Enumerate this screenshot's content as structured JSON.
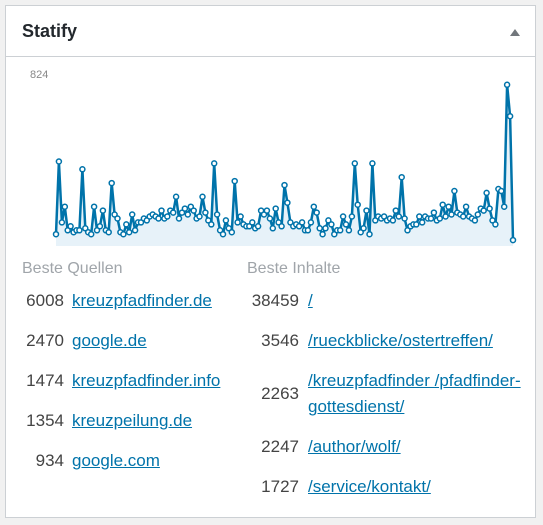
{
  "widget": {
    "title": "Statify",
    "toggle_icon": "triangle-up-icon"
  },
  "colors": {
    "line": "#0073aa",
    "area": "#e7f2f9",
    "link": "#0073aa",
    "muted": "#a0a5aa"
  },
  "chart_data": {
    "type": "area",
    "ymax_label": "824",
    "ylim": [
      0,
      824
    ],
    "values": [
      60,
      430,
      120,
      200,
      80,
      100,
      70,
      80,
      80,
      390,
      90,
      70,
      60,
      200,
      80,
      100,
      180,
      80,
      70,
      320,
      160,
      140,
      70,
      60,
      110,
      70,
      160,
      80,
      120,
      120,
      140,
      130,
      150,
      160,
      150,
      140,
      180,
      140,
      150,
      180,
      170,
      250,
      140,
      170,
      190,
      160,
      200,
      180,
      140,
      150,
      250,
      170,
      130,
      110,
      420,
      160,
      80,
      60,
      130,
      90,
      70,
      330,
      120,
      150,
      110,
      100,
      100,
      120,
      90,
      100,
      180,
      160,
      180,
      140,
      90,
      190,
      120,
      100,
      310,
      220,
      120,
      100,
      110,
      100,
      120,
      80,
      80,
      120,
      200,
      170,
      90,
      60,
      90,
      130,
      110,
      60,
      80,
      80,
      150,
      110,
      80,
      150,
      420,
      210,
      70,
      90,
      180,
      60,
      420,
      130,
      150,
      140,
      150,
      130,
      140,
      130,
      180,
      150,
      350,
      140,
      80,
      100,
      110,
      110,
      150,
      120,
      150,
      140,
      140,
      170,
      130,
      140,
      210,
      150,
      200,
      160,
      280,
      170,
      160,
      150,
      200,
      150,
      140,
      130,
      160,
      190,
      180,
      270,
      190,
      130,
      110,
      290,
      280,
      200,
      820,
      660,
      30
    ]
  },
  "sources": {
    "header": "Beste Quellen",
    "items": [
      {
        "count": "6008",
        "label": "kreuzpfadfinder.de"
      },
      {
        "count": "2470",
        "label": "google.de"
      },
      {
        "count": "1474",
        "label": "kreuzpfadfinder.info"
      },
      {
        "count": "1354",
        "label": "kreuzpeilung.de"
      },
      {
        "count": "934",
        "label": "google.com"
      }
    ]
  },
  "contents": {
    "header": "Beste Inhalte",
    "items": [
      {
        "count": "38459",
        "label": "/"
      },
      {
        "count": "3546",
        "label": "/rueckblicke/ostertreffen/"
      },
      {
        "count": "2263",
        "label": "/kreuzpfadfinder /pfadfinder-gottesdienst/"
      },
      {
        "count": "2247",
        "label": "/author/wolf/"
      },
      {
        "count": "1727",
        "label": "/service/kontakt/"
      }
    ]
  }
}
